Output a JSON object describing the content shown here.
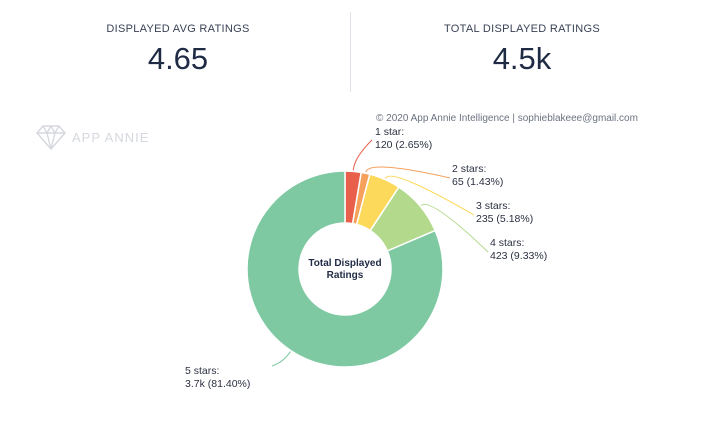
{
  "stats": {
    "avg": {
      "label": "DISPLAYED AVG RATINGS",
      "value": "4.65"
    },
    "total": {
      "label": "TOTAL DISPLAYED RATINGS",
      "value": "4.5k"
    }
  },
  "copyright": "© 2020 App Annie Intelligence | sophieblakeee@gmail.com",
  "logo": {
    "text": "APP ANNIE",
    "icon": "diamond-icon"
  },
  "chart_data": {
    "type": "pie",
    "center_label": [
      "Total Displayed",
      "Ratings"
    ],
    "slices": [
      {
        "name": "1 star:",
        "value_text": "120 (2.65%)",
        "percent": 2.65,
        "color": "#e8604c"
      },
      {
        "name": "2 stars:",
        "value_text": "65 (1.43%)",
        "percent": 1.43,
        "color": "#f5a05b"
      },
      {
        "name": "3 stars:",
        "value_text": "235 (5.18%)",
        "percent": 5.18,
        "color": "#fcd95a"
      },
      {
        "name": "4 stars:",
        "value_text": "423 (9.33%)",
        "percent": 9.33,
        "color": "#b3d98c"
      },
      {
        "name": "5 stars:",
        "value_text": "3.7k (81.40%)",
        "percent": 81.4,
        "color": "#7ec9a2"
      }
    ]
  }
}
